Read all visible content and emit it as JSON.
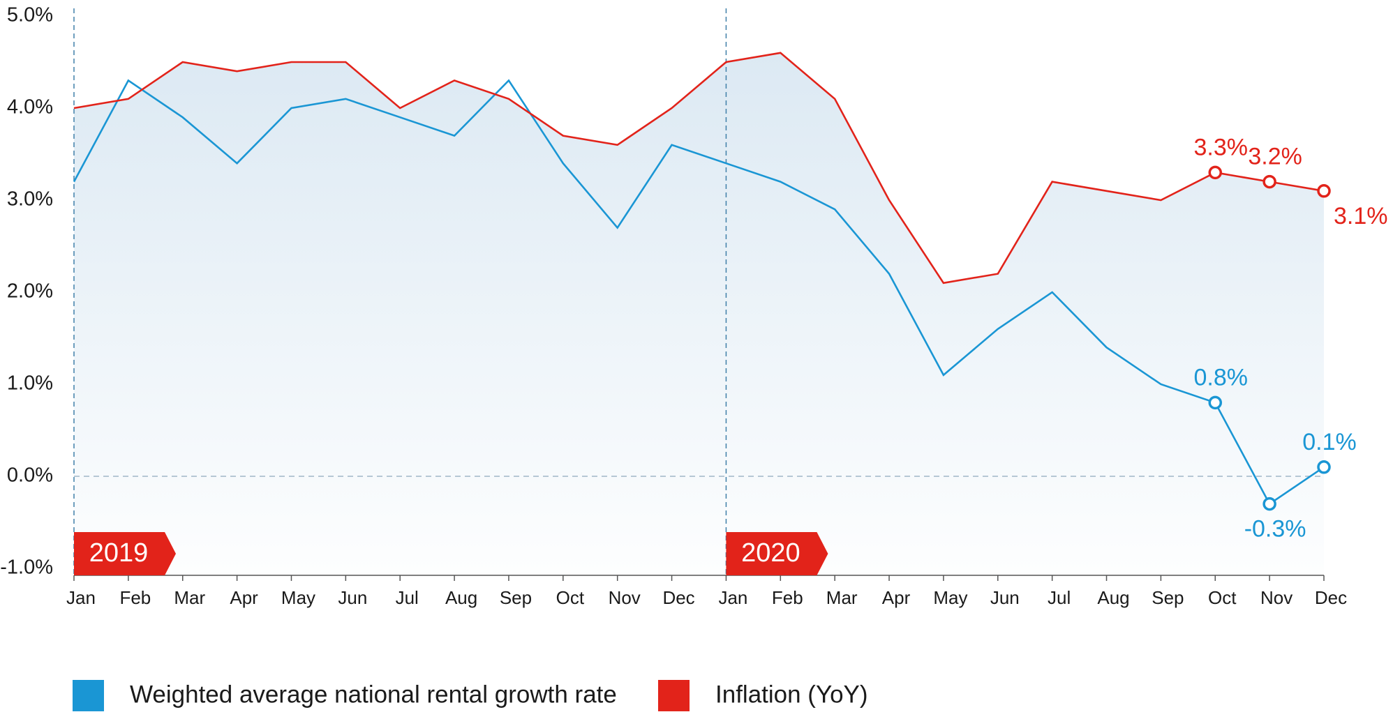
{
  "chart_data": {
    "type": "line",
    "categories": [
      "Jan",
      "Feb",
      "Mar",
      "Apr",
      "May",
      "Jun",
      "Jul",
      "Aug",
      "Sep",
      "Oct",
      "Nov",
      "Dec",
      "Jan",
      "Feb",
      "Mar",
      "Apr",
      "May",
      "Jun",
      "Jul",
      "Aug",
      "Sep",
      "Oct",
      "Nov",
      "Dec"
    ],
    "year_labels": [
      "2019",
      "2020"
    ],
    "series": [
      {
        "name": "Weighted average national rental growth rate",
        "color": "#1a96d4",
        "values": [
          3.2,
          4.3,
          3.9,
          3.4,
          4.0,
          4.1,
          3.9,
          3.7,
          4.3,
          3.4,
          2.7,
          3.6,
          3.4,
          3.2,
          2.9,
          2.2,
          1.1,
          1.6,
          2.0,
          1.4,
          1.0,
          0.8,
          -0.3,
          0.1
        ],
        "value_labels": [
          null,
          null,
          null,
          null,
          null,
          null,
          null,
          null,
          null,
          null,
          null,
          null,
          null,
          null,
          null,
          null,
          null,
          null,
          null,
          null,
          null,
          "0.8%",
          "-0.3%",
          "0.1%"
        ]
      },
      {
        "name": "Inflation (YoY)",
        "color": "#e2231a",
        "values": [
          4.0,
          4.1,
          4.5,
          4.4,
          4.5,
          4.5,
          4.0,
          4.3,
          4.1,
          3.7,
          3.6,
          4.0,
          4.5,
          4.6,
          4.1,
          3.0,
          2.1,
          2.2,
          3.2,
          3.1,
          3.0,
          3.3,
          3.2,
          3.1
        ],
        "value_labels": [
          null,
          null,
          null,
          null,
          null,
          null,
          null,
          null,
          null,
          null,
          null,
          null,
          null,
          null,
          null,
          null,
          null,
          null,
          null,
          null,
          null,
          "3.3%",
          "3.2%",
          "3.1%"
        ]
      }
    ],
    "ylim": [
      -1,
      5
    ],
    "yticks": [
      {
        "value": 5,
        "label": "5.0%"
      },
      {
        "value": 4,
        "label": "4.0%"
      },
      {
        "value": 3,
        "label": "3.0%"
      },
      {
        "value": 2,
        "label": "2.0%"
      },
      {
        "value": 1,
        "label": "1.0%"
      },
      {
        "value": 0,
        "label": "0.0%"
      },
      {
        "value": -1,
        "label": "-1.0%"
      }
    ]
  }
}
